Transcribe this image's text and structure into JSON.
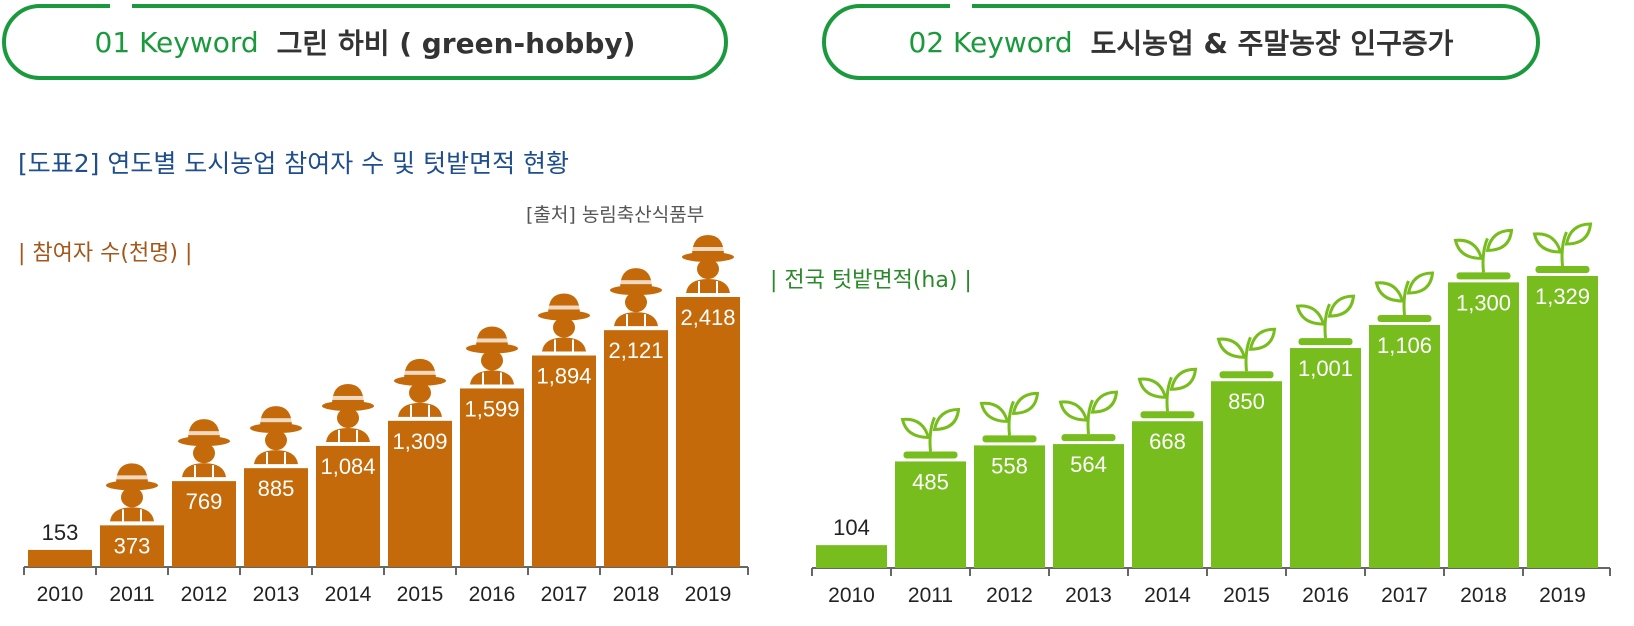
{
  "keywords": [
    {
      "number": "01 Keyword",
      "topic": "그린 하비 ( green-hobby)"
    },
    {
      "number": "02 Keyword",
      "topic": "도시농업 & 주말농장 인구증가"
    }
  ],
  "figure": {
    "title": "[도표2] 연도별 도시농업 참여자 수 및 텃밭면적 현황",
    "source": "[출처] 농림축산식품부"
  },
  "colors": {
    "accent_green": "#1a9a3c",
    "participants_bar": "#c46a0a",
    "area_bar": "#76bd1d"
  },
  "icons": {
    "participants": "farmer-hat-icon",
    "area": "sprout-pot-icon"
  },
  "chart_data": [
    {
      "type": "bar",
      "title": "| 참여자 수(천명) |",
      "categories": [
        "2010",
        "2011",
        "2012",
        "2013",
        "2014",
        "2015",
        "2016",
        "2017",
        "2018",
        "2019"
      ],
      "values": [
        153,
        373,
        769,
        885,
        1084,
        1309,
        1599,
        1894,
        2121,
        2418
      ],
      "value_labels": [
        "153",
        "373",
        "769",
        "885",
        "1,084",
        "1,309",
        "1,599",
        "1,894",
        "2,121",
        "2,418"
      ],
      "ylim": [
        0,
        2418
      ],
      "grid": false,
      "legend": "none"
    },
    {
      "type": "bar",
      "title": "| 전국 텃밭면적(ha) |",
      "categories": [
        "2010",
        "2011",
        "2012",
        "2013",
        "2014",
        "2015",
        "2016",
        "2017",
        "2018",
        "2019"
      ],
      "values": [
        104,
        485,
        558,
        564,
        668,
        850,
        1001,
        1106,
        1300,
        1329
      ],
      "value_labels": [
        "104",
        "485",
        "558",
        "564",
        "668",
        "850",
        "1,001",
        "1,106",
        "1,300",
        "1,329"
      ],
      "ylim": [
        0,
        1329
      ],
      "grid": false,
      "legend": "none"
    }
  ]
}
